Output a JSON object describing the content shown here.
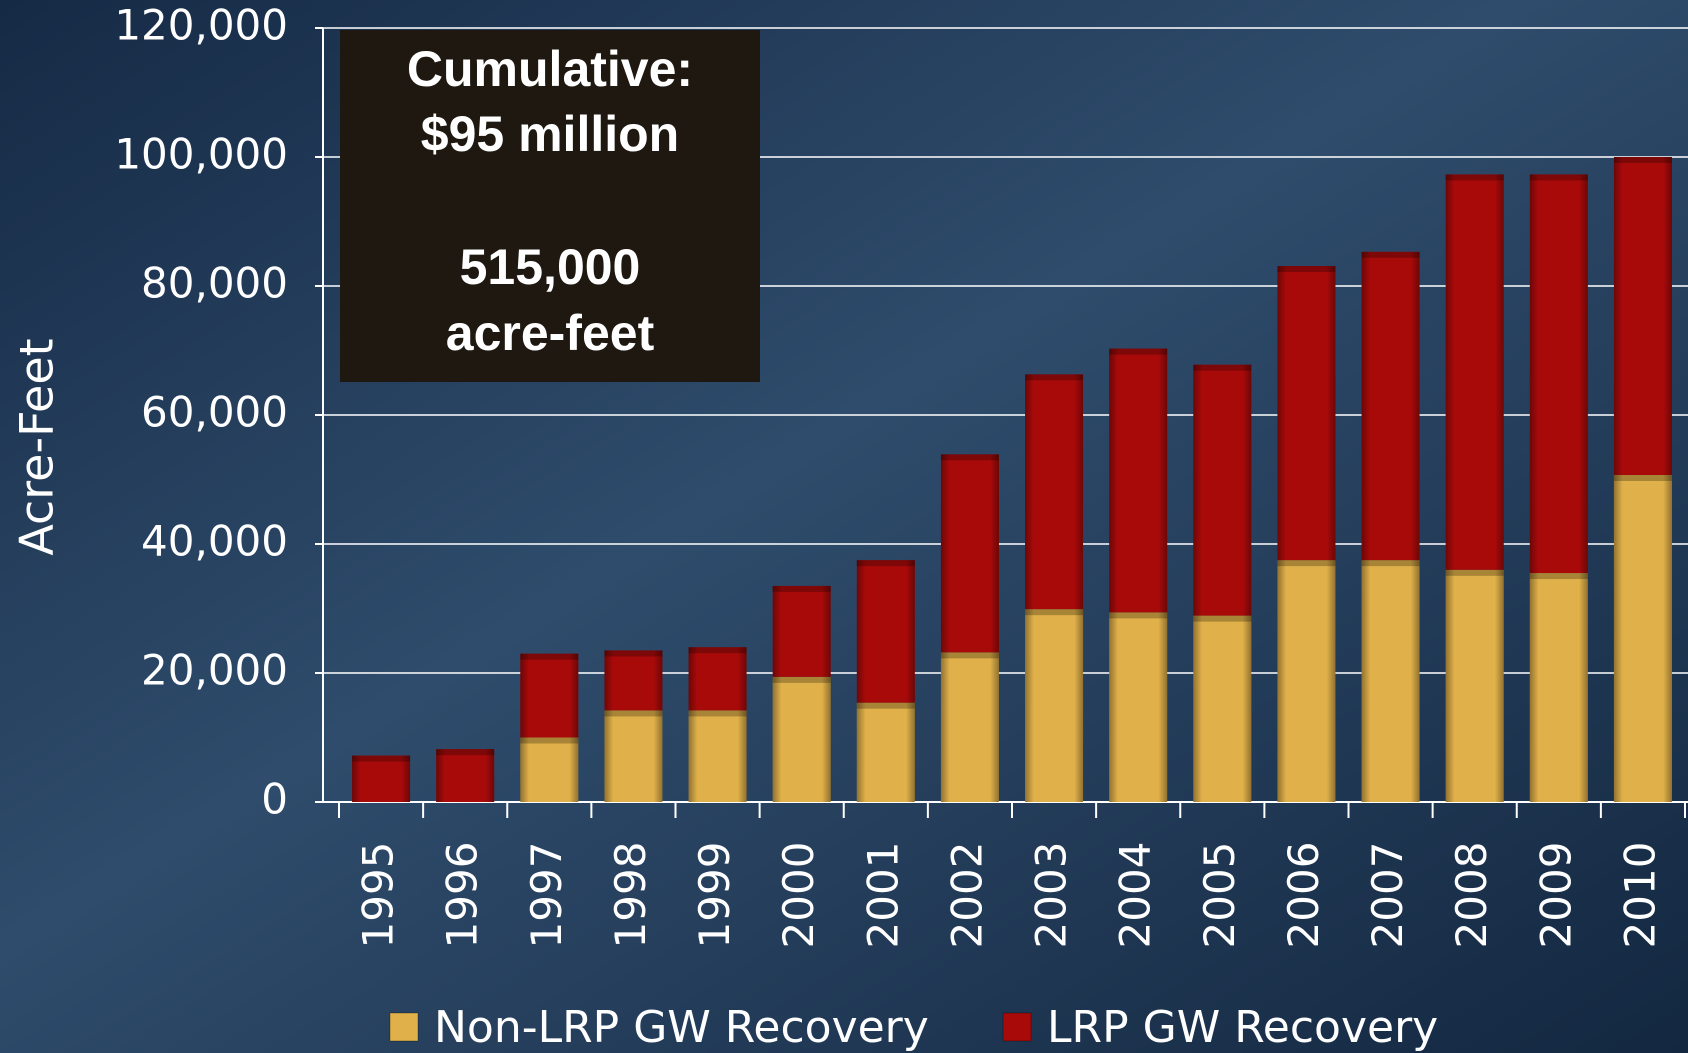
{
  "chart_data": {
    "type": "stacked_bar",
    "y_label": "Acre-Feet",
    "annotation": [
      "Cumulative:",
      "$95 million",
      "515,000",
      "acre-feet"
    ],
    "categories": [
      "1995",
      "1996",
      "1997",
      "1998",
      "1999",
      "2000",
      "2001",
      "2002",
      "2003",
      "2004",
      "2005",
      "2006",
      "2007",
      "2008",
      "2009",
      "2010"
    ],
    "series": [
      {
        "name": "Non-LRP GW Recovery",
        "color": "#e0b04a",
        "values": [
          0,
          0,
          10000,
          14200,
          14200,
          19400,
          15400,
          23200,
          29900,
          29400,
          28900,
          37500,
          37500,
          36000,
          35500,
          50700
        ]
      },
      {
        "name": "LRP GW Recovery",
        "color": "#a80a0a",
        "values": [
          7200,
          8200,
          13000,
          9300,
          9800,
          14100,
          22100,
          30700,
          36400,
          40900,
          38900,
          45600,
          47800,
          61300,
          61800,
          49300
        ]
      }
    ],
    "ylim": [
      0,
      120000
    ],
    "yticks": [
      0,
      {
        "value": 20000,
        "label": "20,000"
      },
      {
        "value": 40000,
        "label": "40,000"
      },
      {
        "value": 60000,
        "label": "60,000"
      },
      {
        "value": 80000,
        "label": "80,000"
      },
      {
        "value": 100000,
        "label": "100,000"
      },
      {
        "value": 120000,
        "label": "120,000"
      }
    ],
    "grid": true,
    "legend": "bottom"
  }
}
